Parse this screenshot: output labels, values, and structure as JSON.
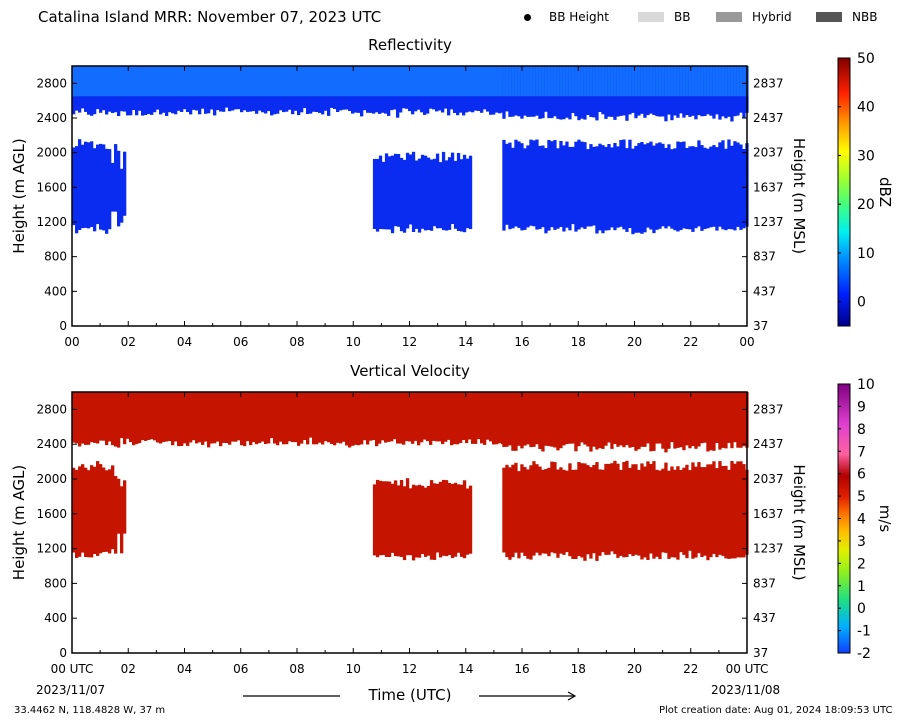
{
  "header": {
    "title": "Catalina Island MRR:  November 07, 2023 UTC",
    "legend": [
      {
        "label": "BB Height",
        "icon": "dot-icon",
        "color": "#000000"
      },
      {
        "label": "BB",
        "icon": "bb-swatch",
        "color": "#d9d9d9"
      },
      {
        "label": "Hybrid",
        "icon": "hybrid-swatch",
        "color": "#999999"
      },
      {
        "label": "NBB",
        "icon": "nbb-swatch",
        "color": "#555555"
      }
    ]
  },
  "chart_data": [
    {
      "type": "heatmap",
      "title": "Reflectivity",
      "ylabel": "Height (m AGL)",
      "ylabel_right": "Height (m MSL)",
      "ylim": [
        0,
        3000
      ],
      "yticks": [
        0,
        400,
        800,
        1200,
        1600,
        2000,
        2400,
        2800
      ],
      "yticks_right": [
        "37",
        "437",
        "837",
        "1237",
        "1637",
        "2037",
        "2437",
        "2837"
      ],
      "xlim": [
        0,
        24
      ],
      "xticks": [
        "00",
        "02",
        "04",
        "06",
        "08",
        "10",
        "12",
        "14",
        "16",
        "18",
        "20",
        "22",
        "00"
      ],
      "colorbar": {
        "label": "dBZ",
        "range": [
          -5,
          50
        ],
        "ticks": [
          0,
          10,
          20,
          30,
          40,
          50
        ]
      },
      "echo_regions_hours_m": [
        {
          "t0": 0.0,
          "t1": 15.3,
          "h0": 2500,
          "h1": 3000,
          "typical_dBZ": 2
        },
        {
          "t0": 15.3,
          "t1": 24.0,
          "h0": 2450,
          "h1": 3000,
          "typical_dBZ": 2
        },
        {
          "t0": 0.0,
          "t1": 1.9,
          "h0": 1150,
          "h1": 2100,
          "typical_dBZ": 0
        },
        {
          "t0": 10.7,
          "t1": 14.2,
          "h0": 1150,
          "h1": 1950,
          "typical_dBZ": -1
        },
        {
          "t0": 15.3,
          "t1": 24.0,
          "h0": 1150,
          "h1": 2100,
          "typical_dBZ": 0
        }
      ]
    },
    {
      "type": "heatmap",
      "title": "Vertical Velocity",
      "ylabel": "Height (m AGL)",
      "ylabel_right": "Height (m MSL)",
      "ylim": [
        0,
        3000
      ],
      "yticks": [
        0,
        400,
        800,
        1200,
        1600,
        2000,
        2400,
        2800
      ],
      "yticks_right": [
        "37",
        "437",
        "837",
        "1237",
        "1637",
        "2037",
        "2437",
        "2837"
      ],
      "xlim": [
        0,
        24
      ],
      "xticks": [
        "00 UTC",
        "02",
        "04",
        "06",
        "08",
        "10",
        "12",
        "14",
        "16",
        "18",
        "20",
        "22",
        "00 UTC"
      ],
      "xlabel": "Time (UTC)",
      "date_start": "2023/11/07",
      "date_end": "2023/11/08",
      "colorbar": {
        "label": "m/s",
        "range": [
          -2,
          10
        ],
        "ticks": [
          -2,
          -1,
          0,
          1,
          2,
          3,
          4,
          5,
          6,
          7,
          8,
          9,
          10
        ]
      },
      "echo_regions_hours_m": [
        {
          "t0": 0.0,
          "t1": 15.3,
          "h0": 2450,
          "h1": 3000,
          "typical_ms": 5.5
        },
        {
          "t0": 15.3,
          "t1": 24.0,
          "h0": 2400,
          "h1": 3000,
          "typical_ms": 5.5
        },
        {
          "t0": 0.0,
          "t1": 1.9,
          "h0": 1150,
          "h1": 2150,
          "typical_ms": 5.5
        },
        {
          "t0": 10.7,
          "t1": 14.2,
          "h0": 1150,
          "h1": 1950,
          "typical_ms": 5.5
        },
        {
          "t0": 15.3,
          "t1": 24.0,
          "h0": 1150,
          "h1": 2150,
          "typical_ms": 5.5
        }
      ]
    }
  ],
  "footer": {
    "location": "33.4462 N, 118.4828 W, 37 m",
    "creation": "Plot creation date: Aug 01, 2024 18:09:53 UTC"
  },
  "colors": {
    "refl_echo": "#0a2cf0",
    "refl_top": "#1478ff",
    "vel_echo": "#c51400"
  }
}
